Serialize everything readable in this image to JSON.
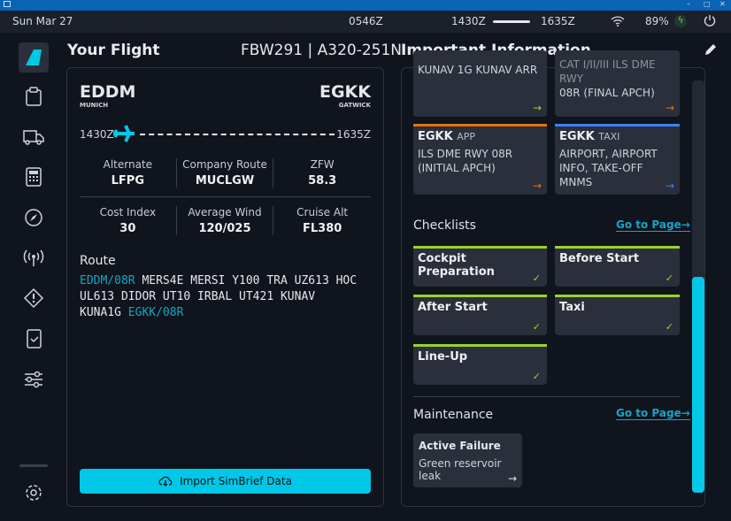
{
  "statusbar": {
    "date": "Sun Mar 27",
    "utc": "0546Z",
    "dep_time": "1430Z",
    "arr_time": "1635Z",
    "battery": "89%"
  },
  "window": {
    "minimize": "–",
    "maximize": "□",
    "close": "✕"
  },
  "sidebar": {
    "items": [
      "logo",
      "dashboard",
      "ground",
      "performance",
      "navigation",
      "atc",
      "failures",
      "checklists",
      "presets",
      "settings"
    ]
  },
  "flight": {
    "heading": "Your Flight",
    "callsign": "FBW291 | A320-251N",
    "origin": {
      "icao": "EDDM",
      "name": "MUNICH",
      "time": "1430Z"
    },
    "destination": {
      "icao": "EGKK",
      "name": "GATWICK",
      "time": "1635Z"
    },
    "info": [
      {
        "label": "Alternate",
        "value": "LFPG"
      },
      {
        "label": "Company Route",
        "value": "MUCLGW"
      },
      {
        "label": "ZFW",
        "value": "58.3"
      },
      {
        "label": "Cost Index",
        "value": "30"
      },
      {
        "label": "Average Wind",
        "value": "120/025"
      },
      {
        "label": "Cruise Alt",
        "value": "FL380"
      }
    ],
    "route_label": "Route",
    "route": {
      "start": "EDDM/08R",
      "middle1": " MERS4E MERSI Y100 TRA UZ613 HOC",
      "middle2": "UL613 DIDOR UT10 IRBAL UT421 KUNAV",
      "middle3": "KUNA1G ",
      "end": "EGKK/08R"
    },
    "import_button": "Import SimBrief Data"
  },
  "important": {
    "heading": "Important Information",
    "charts": [
      {
        "title": "",
        "type": "",
        "desc": "KUNAV 1G KUNAV ARR",
        "color": "#9bd22c"
      },
      {
        "title": "",
        "type": "",
        "desc": "CAT I/II/III ILS DME RWY 08R (FINAL APCH)",
        "desc_visible": "08R (FINAL APCH)",
        "color": "#e8720c"
      },
      {
        "title": "EGKK",
        "type": "APP",
        "desc": "ILS DME RWY 08R (INITIAL APCH)",
        "color": "#e8720c"
      },
      {
        "title": "EGKK",
        "type": "TAXI",
        "desc": "AIRPORT, AIRPORT INFO, TAKE-OFF MNMS",
        "color": "#3b82f6"
      }
    ],
    "checklists_title": "Checklists",
    "goto": "Go to Page→",
    "checklists": [
      "Cockpit Preparation",
      "Before Start",
      "After Start",
      "Taxi",
      "Line-Up"
    ],
    "maintenance_title": "Maintenance",
    "failure": {
      "title": "Active Failure",
      "desc": "Green reservoir leak",
      "arrow": "→"
    },
    "scroll_position": 0.75
  },
  "colors": {
    "accent": "#00c8e6",
    "complete": "#9bd22c"
  }
}
